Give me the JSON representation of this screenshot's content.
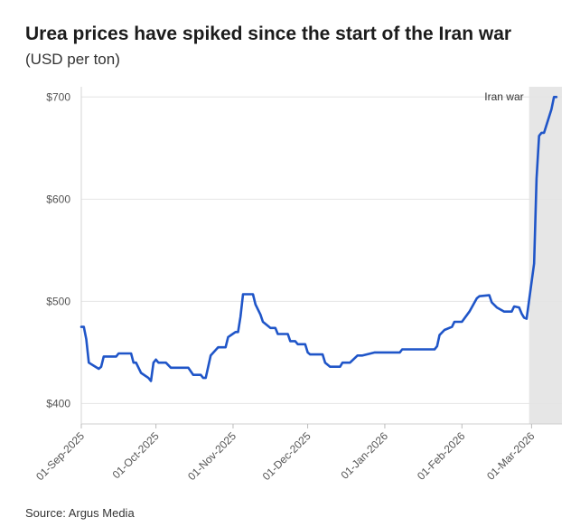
{
  "title": "Urea prices have spiked since the start of the Iran war",
  "subtitle": "(USD per ton)",
  "source": "Source: Argus Media",
  "colors": {
    "line": "#1f55c8",
    "shade": "#e6e6e6",
    "grid": "#e4e4e4"
  },
  "chart_data": {
    "type": "line",
    "title": "Urea prices have spiked since the start of the Iran war",
    "subtitle": "(USD per ton)",
    "xlabel": "",
    "ylabel": "",
    "x_range": [
      "2025-09-01",
      "2026-03-12"
    ],
    "ylim": [
      380,
      710
    ],
    "y_ticks": [
      {
        "value": 400,
        "label": "$400"
      },
      {
        "value": 500,
        "label": "$500"
      },
      {
        "value": 600,
        "label": "$600"
      },
      {
        "value": 700,
        "label": "$700"
      }
    ],
    "x_ticks": [
      {
        "date": "2025-09-01",
        "label": "01-Sep-2025"
      },
      {
        "date": "2025-10-01",
        "label": "01-Oct-2025"
      },
      {
        "date": "2025-11-01",
        "label": "01-Nov-2025"
      },
      {
        "date": "2025-12-01",
        "label": "01-Dec-2025"
      },
      {
        "date": "2026-01-01",
        "label": "01-Jan-2026"
      },
      {
        "date": "2026-02-01",
        "label": "01-Feb-2026"
      },
      {
        "date": "2026-03-01",
        "label": "01-Mar-2026"
      }
    ],
    "grid": "horizontal",
    "legend": "none",
    "annotation": {
      "label": "Iran war",
      "start": "2026-02-28",
      "end": "2026-03-12"
    },
    "series": [
      {
        "points": [
          [
            "2025-09-01",
            475
          ],
          [
            "2025-09-02",
            475
          ],
          [
            "2025-09-03",
            463
          ],
          [
            "2025-09-04",
            440
          ],
          [
            "2025-09-06",
            437
          ],
          [
            "2025-09-08",
            434
          ],
          [
            "2025-09-09",
            436
          ],
          [
            "2025-09-10",
            446
          ],
          [
            "2025-09-15",
            446
          ],
          [
            "2025-09-16",
            449
          ],
          [
            "2025-09-21",
            449
          ],
          [
            "2025-09-22",
            440
          ],
          [
            "2025-09-23",
            440
          ],
          [
            "2025-09-25",
            430
          ],
          [
            "2025-09-28",
            425
          ],
          [
            "2025-09-29",
            422
          ],
          [
            "2025-09-30",
            440
          ],
          [
            "2025-10-01",
            443
          ],
          [
            "2025-10-02",
            440
          ],
          [
            "2025-10-05",
            440
          ],
          [
            "2025-10-07",
            435
          ],
          [
            "2025-10-14",
            435
          ],
          [
            "2025-10-16",
            428
          ],
          [
            "2025-10-19",
            428
          ],
          [
            "2025-10-20",
            425
          ],
          [
            "2025-10-21",
            425
          ],
          [
            "2025-10-23",
            447
          ],
          [
            "2025-10-26",
            455
          ],
          [
            "2025-10-29",
            455
          ],
          [
            "2025-10-30",
            465
          ],
          [
            "2025-11-02",
            470
          ],
          [
            "2025-11-03",
            470
          ],
          [
            "2025-11-04",
            485
          ],
          [
            "2025-11-05",
            507
          ],
          [
            "2025-11-09",
            507
          ],
          [
            "2025-11-10",
            497
          ],
          [
            "2025-11-12",
            487
          ],
          [
            "2025-11-13",
            480
          ],
          [
            "2025-11-16",
            474
          ],
          [
            "2025-11-18",
            474
          ],
          [
            "2025-11-19",
            468
          ],
          [
            "2025-11-23",
            468
          ],
          [
            "2025-11-24",
            461
          ],
          [
            "2025-11-26",
            461
          ],
          [
            "2025-11-27",
            458
          ],
          [
            "2025-11-30",
            458
          ],
          [
            "2025-12-01",
            450
          ],
          [
            "2025-12-02",
            448
          ],
          [
            "2025-12-07",
            448
          ],
          [
            "2025-12-08",
            440
          ],
          [
            "2025-12-10",
            436
          ],
          [
            "2025-12-14",
            436
          ],
          [
            "2025-12-15",
            440
          ],
          [
            "2025-12-18",
            440
          ],
          [
            "2025-12-21",
            447
          ],
          [
            "2025-12-23",
            447
          ],
          [
            "2025-12-28",
            450
          ],
          [
            "2026-01-04",
            450
          ],
          [
            "2026-01-07",
            450
          ],
          [
            "2026-01-08",
            453
          ],
          [
            "2026-01-21",
            453
          ],
          [
            "2026-01-22",
            456
          ],
          [
            "2026-01-23",
            467
          ],
          [
            "2026-01-25",
            472
          ],
          [
            "2026-01-28",
            475
          ],
          [
            "2026-01-29",
            480
          ],
          [
            "2026-02-01",
            480
          ],
          [
            "2026-02-04",
            490
          ],
          [
            "2026-02-07",
            503
          ],
          [
            "2026-02-08",
            505
          ],
          [
            "2026-02-12",
            506
          ],
          [
            "2026-02-13",
            499
          ],
          [
            "2026-02-15",
            494
          ],
          [
            "2026-02-18",
            490
          ],
          [
            "2026-02-21",
            490
          ],
          [
            "2026-02-22",
            495
          ],
          [
            "2026-02-24",
            494
          ],
          [
            "2026-02-25",
            488
          ],
          [
            "2026-02-26",
            484
          ],
          [
            "2026-02-27",
            483
          ],
          [
            "2026-03-02",
            537
          ],
          [
            "2026-03-03",
            620
          ],
          [
            "2026-03-04",
            662
          ],
          [
            "2026-03-05",
            665
          ],
          [
            "2026-03-06",
            665
          ],
          [
            "2026-03-09",
            688
          ],
          [
            "2026-03-10",
            700
          ],
          [
            "2026-03-11",
            700
          ]
        ]
      }
    ]
  }
}
